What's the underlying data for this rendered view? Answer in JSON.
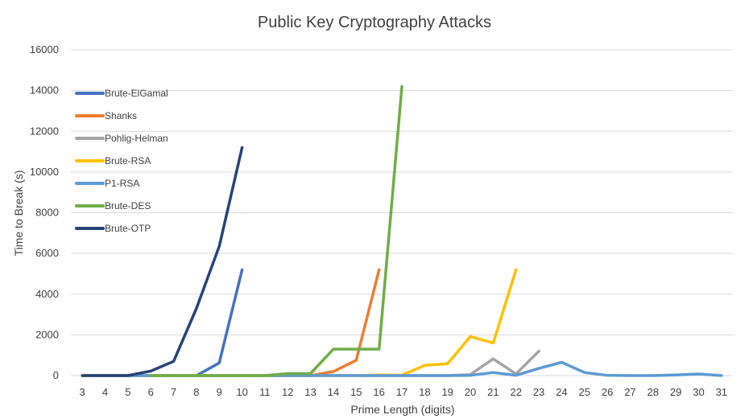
{
  "chart_data": {
    "type": "line",
    "title": "Public Key Cryptography Attacks",
    "xlabel": "Prime Length (digits)",
    "ylabel": "Time to Break (s)",
    "categories": [
      "3",
      "4",
      "5",
      "6",
      "7",
      "8",
      "9",
      "10",
      "11",
      "12",
      "13",
      "14",
      "15",
      "16",
      "17",
      "18",
      "19",
      "20",
      "21",
      "22",
      "23",
      "24",
      "25",
      "26",
      "27",
      "28",
      "29",
      "30",
      "31"
    ],
    "ylim": [
      0,
      16000
    ],
    "yticks": [
      0,
      2000,
      4000,
      6000,
      8000,
      10000,
      12000,
      14000,
      16000
    ],
    "grid": true,
    "legend_position": "left",
    "series": [
      {
        "name": "Brute-ElGamal",
        "color": "#4472c4",
        "x": [
          3,
          4,
          5,
          6,
          7,
          8,
          9,
          10
        ],
        "y": [
          0,
          0,
          0,
          0,
          0,
          0,
          620,
          5200
        ]
      },
      {
        "name": "Shanks",
        "color": "#ed7d31",
        "x": [
          3,
          4,
          5,
          6,
          7,
          8,
          9,
          10,
          11,
          12,
          13,
          14,
          15,
          16
        ],
        "y": [
          0,
          0,
          0,
          0,
          0,
          0,
          0,
          0,
          0,
          0,
          0,
          200,
          750,
          5200
        ]
      },
      {
        "name": "Pohlig-Helman",
        "color": "#a5a5a5",
        "x": [
          3,
          4,
          5,
          6,
          7,
          8,
          9,
          10,
          11,
          12,
          13,
          14,
          15,
          16,
          17,
          18,
          19,
          20,
          21,
          22,
          23
        ],
        "y": [
          0,
          0,
          0,
          0,
          0,
          0,
          0,
          0,
          0,
          0,
          0,
          0,
          0,
          0,
          0,
          0,
          0,
          50,
          820,
          80,
          1200
        ]
      },
      {
        "name": "Brute-RSA",
        "color": "#ffc000",
        "x": [
          3,
          4,
          5,
          6,
          7,
          8,
          9,
          10,
          11,
          12,
          13,
          14,
          15,
          16,
          17,
          18,
          19,
          20,
          21,
          22
        ],
        "y": [
          0,
          0,
          0,
          0,
          0,
          0,
          0,
          0,
          0,
          0,
          0,
          0,
          0,
          30,
          20,
          500,
          580,
          1920,
          1600,
          5200
        ]
      },
      {
        "name": "P1-RSA",
        "color": "#5b9bd5",
        "x": [
          3,
          4,
          5,
          6,
          7,
          8,
          9,
          10,
          11,
          12,
          13,
          14,
          15,
          16,
          17,
          18,
          19,
          20,
          21,
          22,
          23,
          24,
          25,
          26,
          27,
          28,
          29,
          30,
          31
        ],
        "y": [
          0,
          0,
          0,
          0,
          0,
          0,
          0,
          0,
          0,
          0,
          0,
          0,
          0,
          0,
          0,
          0,
          0,
          10,
          150,
          10,
          350,
          650,
          150,
          10,
          0,
          0,
          30,
          80,
          0
        ]
      },
      {
        "name": "Brute-DES",
        "color": "#70ad47",
        "x": [
          6,
          7,
          8,
          9,
          10,
          11,
          12,
          13,
          14,
          15,
          16,
          17
        ],
        "y": [
          0,
          0,
          0,
          0,
          0,
          0,
          100,
          100,
          1300,
          1300,
          1300,
          14200
        ]
      },
      {
        "name": "Brute-OTP",
        "color": "#264478",
        "x": [
          3,
          4,
          5,
          6,
          7,
          8,
          9,
          10
        ],
        "y": [
          0,
          0,
          0,
          220,
          700,
          3300,
          6350,
          11200
        ]
      }
    ]
  }
}
